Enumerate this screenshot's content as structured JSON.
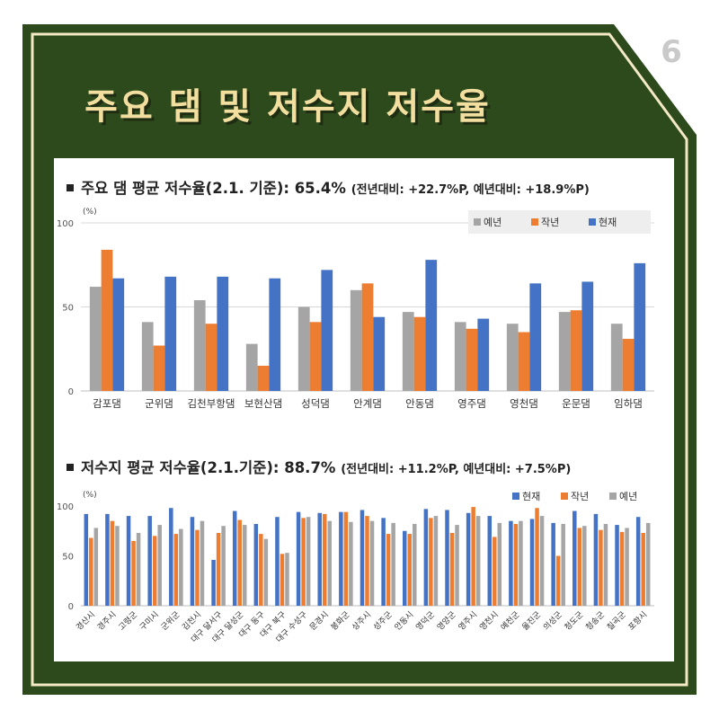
{
  "page_number": "6",
  "title": "주요 댐 및 저수지 저수율",
  "dams": {
    "headline_main": "주요 댐 평균 저수율(2.1. 기준): 65.4%",
    "headline_sub": "(전년대비: +22.7%P, 예년대비: +18.9%P)",
    "unit": "(%)"
  },
  "reservoirs": {
    "headline_main": "저수지 평균 저수율(2.1.기준): 88.7%",
    "headline_sub": "(전년대비: +11.2%P, 예년대비: +7.5%P)",
    "unit": "(%)"
  },
  "colors": {
    "green": "#2d4a1c",
    "cream": "#f3e9c6",
    "gray": "#a5a5a5",
    "orange": "#ed7d31",
    "blue": "#4472c4",
    "grid": "#d9d9d9"
  },
  "chart_data": [
    {
      "type": "bar",
      "ylabel": "(%)",
      "ylim": [
        0,
        100
      ],
      "yticks": [
        0,
        50,
        100
      ],
      "grid": true,
      "legend": "top-right",
      "categories": [
        "감포댐",
        "군위댐",
        "김천부항댐",
        "보현산댐",
        "성덕댐",
        "안계댐",
        "안동댐",
        "영주댐",
        "영천댐",
        "운문댐",
        "임하댐"
      ],
      "series": [
        {
          "name": "예년",
          "color": "gray",
          "values": [
            62,
            41,
            54,
            28,
            50,
            60,
            47,
            41,
            40,
            47,
            40
          ]
        },
        {
          "name": "작년",
          "color": "orange",
          "values": [
            84,
            27,
            40,
            15,
            41,
            64,
            44,
            37,
            35,
            48,
            31
          ]
        },
        {
          "name": "현재",
          "color": "blue",
          "values": [
            67,
            68,
            68,
            67,
            72,
            44,
            78,
            43,
            64,
            65,
            76
          ]
        }
      ]
    },
    {
      "type": "bar",
      "ylabel": "(%)",
      "ylim": [
        0,
        100
      ],
      "yticks": [
        0,
        50,
        100
      ],
      "grid": false,
      "legend": "top-right",
      "categories": [
        "경산시",
        "경주시",
        "고령군",
        "구미시",
        "군위군",
        "김천시",
        "대구 달서구",
        "대구 달성군",
        "대구 동구",
        "대구 북구",
        "대구 수성구",
        "문경시",
        "봉화군",
        "상주시",
        "성주군",
        "안동시",
        "영덕군",
        "영양군",
        "영주시",
        "영천시",
        "예천군",
        "울진군",
        "의성군",
        "청도군",
        "청송군",
        "칠곡군",
        "포항시"
      ],
      "series": [
        {
          "name": "현재",
          "color": "blue",
          "values": [
            92,
            92,
            90,
            90,
            98,
            89,
            46,
            95,
            82,
            89,
            94,
            93,
            94,
            96,
            88,
            75,
            97,
            96,
            93,
            90,
            85,
            87,
            83,
            95,
            92,
            81,
            89
          ]
        },
        {
          "name": "작년",
          "color": "orange",
          "values": [
            68,
            85,
            65,
            70,
            72,
            76,
            73,
            86,
            72,
            52,
            88,
            92,
            94,
            90,
            72,
            72,
            88,
            73,
            99,
            69,
            82,
            98,
            50,
            78,
            76,
            74,
            73
          ]
        },
        {
          "name": "예년",
          "color": "gray",
          "values": [
            78,
            80,
            73,
            81,
            77,
            85,
            80,
            81,
            67,
            53,
            89,
            85,
            84,
            85,
            83,
            82,
            90,
            81,
            90,
            83,
            85,
            90,
            82,
            80,
            82,
            78,
            83
          ]
        }
      ]
    }
  ]
}
